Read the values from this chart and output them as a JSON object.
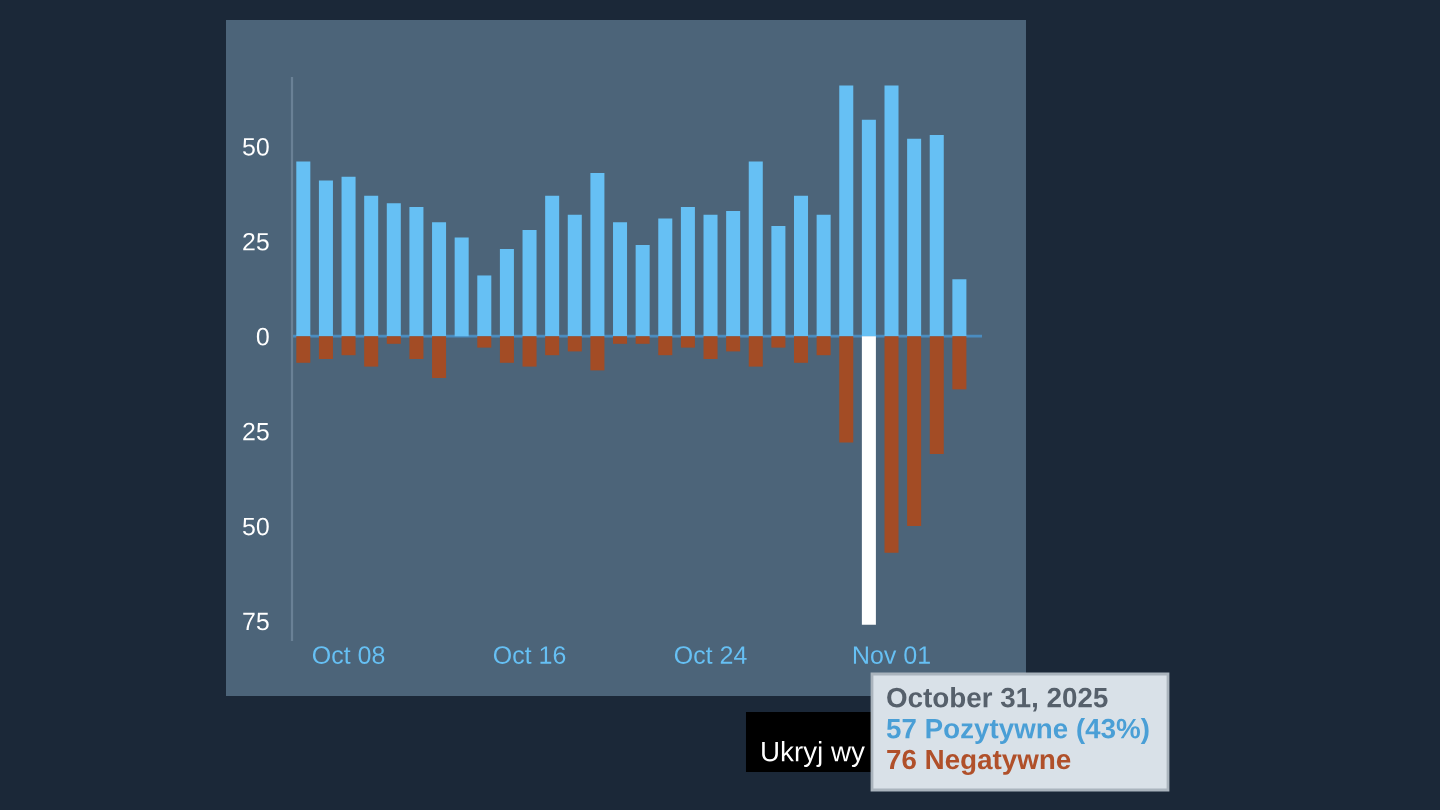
{
  "chart_data": {
    "type": "bar",
    "x": [
      "2025-10-06",
      "2025-10-07",
      "2025-10-08",
      "2025-10-09",
      "2025-10-10",
      "2025-10-11",
      "2025-10-12",
      "2025-10-13",
      "2025-10-14",
      "2025-10-15",
      "2025-10-16",
      "2025-10-17",
      "2025-10-18",
      "2025-10-19",
      "2025-10-20",
      "2025-10-21",
      "2025-10-22",
      "2025-10-23",
      "2025-10-24",
      "2025-10-25",
      "2025-10-26",
      "2025-10-27",
      "2025-10-28",
      "2025-10-29",
      "2025-10-30",
      "2025-10-31",
      "2025-11-01",
      "2025-11-02",
      "2025-11-03",
      "2025-11-04"
    ],
    "series": [
      {
        "color": "#66c0f4",
        "values": [
          46,
          41,
          42,
          37,
          35,
          34,
          30,
          26,
          16,
          23,
          28,
          37,
          32,
          43,
          30,
          24,
          31,
          34,
          32,
          33,
          46,
          29,
          37,
          32,
          66,
          57,
          66,
          52,
          53,
          15
        ]
      },
      {
        "color": "#a34c25",
        "colors": [
          "#a34c25",
          "#a34c25",
          "#a34c25",
          "#a34c25",
          "#a34c25",
          "#a34c25",
          "#a34c25",
          "#a34c25",
          "#a34c25",
          "#a34c25",
          "#a34c25",
          "#a34c25",
          "#a34c25",
          "#a34c25",
          "#a34c25",
          "#a34c25",
          "#a34c25",
          "#a34c25",
          "#a34c25",
          "#a34c25",
          "#a34c25",
          "#a34c25",
          "#a34c25",
          "#a34c25",
          "#a34c25",
          "#ffffff",
          "#a34c25",
          "#a34c25",
          "#a34c25",
          "#a34c25"
        ],
        "values": [
          -7,
          -6,
          -5,
          -8,
          -2,
          -6,
          -11,
          0,
          -3,
          -7,
          -8,
          -5,
          -4,
          -9,
          -2,
          -2,
          -5,
          -3,
          -6,
          -4,
          -8,
          -3,
          -7,
          -5,
          -28,
          -76,
          -57,
          -50,
          -31,
          -14
        ]
      }
    ],
    "stacked": true,
    "xlim": [
      "2025-10-05T12:00",
      "2025-11-05T00:00"
    ],
    "xticks": [
      {
        "value": "2025-10-08",
        "label": "Oct 08"
      },
      {
        "value": "2025-10-16",
        "label": "Oct 16"
      },
      {
        "value": "2025-10-24",
        "label": "Oct 24"
      },
      {
        "value": "2025-11-01",
        "label": "Nov 01"
      }
    ],
    "ylim": [
      -80,
      68
    ],
    "yticks": [
      {
        "value": -75,
        "label": "75"
      },
      {
        "value": -50,
        "label": "50"
      },
      {
        "value": -25,
        "label": "25"
      },
      0,
      25,
      50
    ],
    "ref_lines": [
      {
        "axis": "y",
        "value": 0,
        "color": "#4a8cc0"
      }
    ],
    "annotations": [
      "October 31, 2025",
      "57 Pozytywne (43%)",
      "76 Negatywne",
      "Ukryj wy"
    ]
  }
}
